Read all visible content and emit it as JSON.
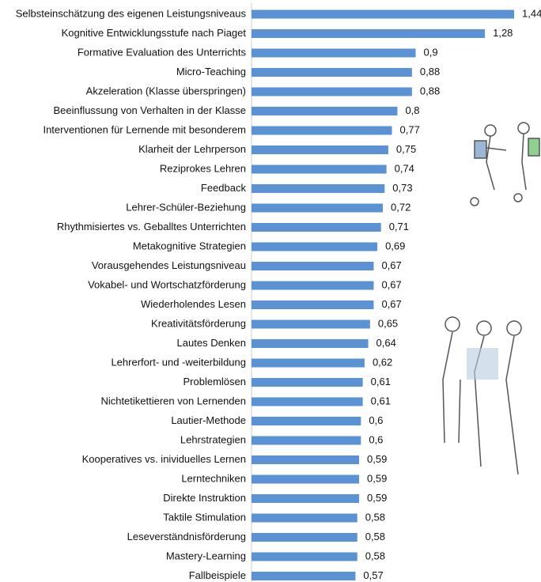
{
  "chart_data": {
    "type": "barh",
    "color": "#5b92d3",
    "categories": [
      "Selbsteinschätzung des eigenen Leistungsniveaus",
      "Kognitive Entwicklungsstufe nach Piaget",
      "Formative Evaluation des Unterrichts",
      "Micro-Teaching",
      "Akzeleration (Klasse überspringen)",
      "Beeinflussung von Verhalten in der Klasse",
      "Interventionen für Lernende mit besonderem",
      "Klarheit der Lehrperson",
      "Reziprokes Lehren",
      "Feedback",
      "Lehrer-Schüler-Beziehung",
      "Rhythmisiertes vs. Geballtes Unterrichten",
      "Metakognitive Strategien",
      "Vorausgehendes Leistungsniveau",
      "Vokabel- und Wortschatzförderung",
      "Wiederholendes Lesen",
      "Kreativitätsförderung",
      "Lautes Denken",
      "Lehrerfort- und -weiterbildung",
      "Problemlösen",
      "Nichtetikettieren von Lernenden",
      "Lautier-Methode",
      "Lehrstrategien",
      "Kooperatives vs. inividuelles Lernen",
      "Lerntechniken",
      "Direkte Instruktion",
      "Taktile Stimulation",
      "Leseverständnisförderung",
      "Mastery-Learning",
      "Fallbeispiele"
    ],
    "values": [
      1.44,
      1.28,
      0.9,
      0.88,
      0.88,
      0.8,
      0.77,
      0.75,
      0.74,
      0.73,
      0.72,
      0.71,
      0.69,
      0.67,
      0.67,
      0.67,
      0.65,
      0.64,
      0.62,
      0.61,
      0.61,
      0.6,
      0.6,
      0.59,
      0.59,
      0.59,
      0.58,
      0.58,
      0.58,
      0.57
    ],
    "value_labels": [
      "1,44",
      "1,28",
      "0,9",
      "0,88",
      "0,88",
      "0,8",
      "0,77",
      "0,75",
      "0,74",
      "0,73",
      "0,72",
      "0,71",
      "0,69",
      "0,67",
      "0,67",
      "0,67",
      "0,65",
      "0,64",
      "0,62",
      "0,61",
      "0,61",
      "0,6",
      "0,6",
      "0,59",
      "0,59",
      "0,59",
      "0,58",
      "0,58",
      "0,58",
      "0,57"
    ]
  }
}
